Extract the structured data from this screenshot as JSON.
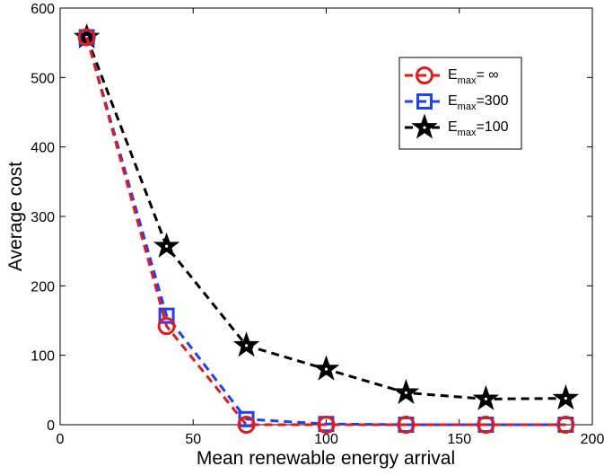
{
  "chart_data": {
    "type": "line",
    "xlabel": "Mean renewable energy arrival",
    "ylabel": "Average cost",
    "xlim": [
      0,
      200
    ],
    "ylim": [
      0,
      600
    ],
    "xticks": [
      "0",
      "50",
      "100",
      "150",
      "200"
    ],
    "yticks": [
      "0",
      "100",
      "200",
      "300",
      "400",
      "500",
      "600"
    ],
    "grid": false,
    "legend_position": "top-right",
    "x": [
      10,
      40,
      70,
      100,
      130,
      160,
      190
    ],
    "series": [
      {
        "name": "E_max = ∞",
        "label_main": "E",
        "label_sub": "max",
        "label_rest": "= ∞",
        "color": "#e31a1c",
        "marker": "circle",
        "values": [
          558,
          142,
          0,
          0,
          0,
          0,
          0
        ]
      },
      {
        "name": "E_max = 300",
        "label_main": "E",
        "label_sub": "max",
        "label_rest": "=300",
        "color": "#1f3fff",
        "marker": "square",
        "values": [
          558,
          157,
          8,
          1,
          0,
          0,
          0
        ]
      },
      {
        "name": "E_max = 100",
        "label_main": "E",
        "label_sub": "max",
        "label_rest": "=100",
        "color": "#000000",
        "marker": "star",
        "values": [
          558,
          257,
          114,
          80,
          46,
          37,
          38
        ]
      }
    ]
  }
}
